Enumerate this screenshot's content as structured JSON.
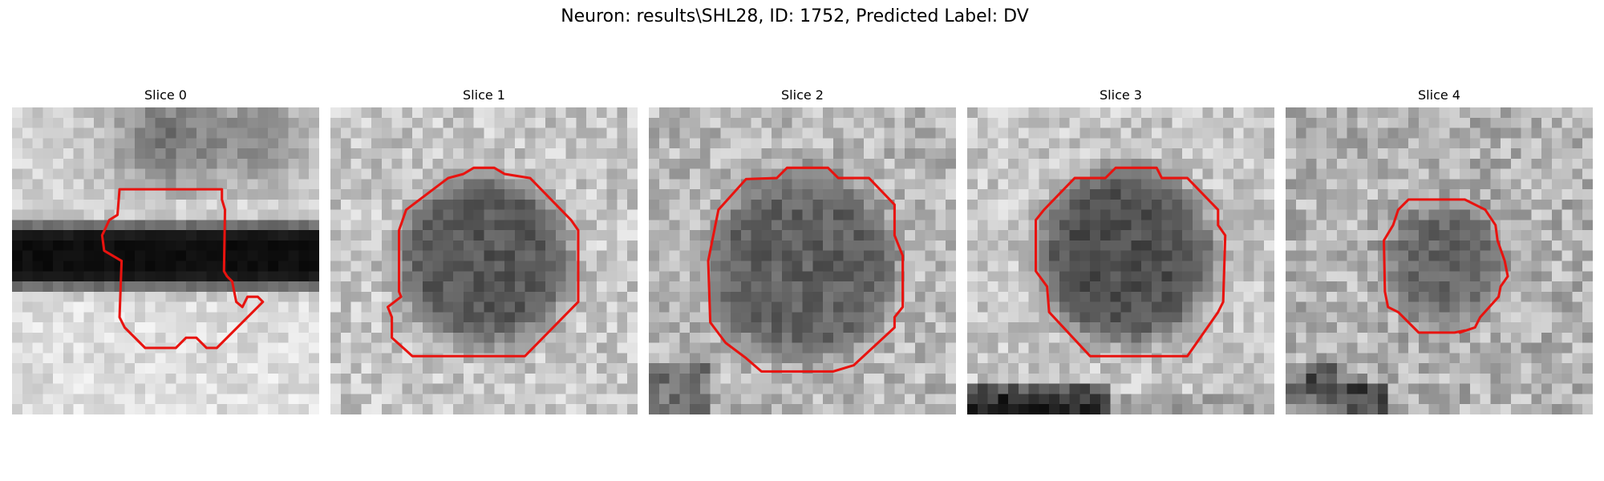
{
  "figure": {
    "title": "Neuron: results\\SHL28, ID: 1752, Predicted Label: DV",
    "contour_color": "#e8130f"
  },
  "slices": [
    {
      "title": "Slice 0",
      "contour": [
        [
          10.5,
          8
        ],
        [
          20.5,
          8
        ],
        [
          20.5,
          9
        ],
        [
          20.8,
          10
        ],
        [
          20.7,
          16
        ],
        [
          21,
          16.5
        ],
        [
          21.5,
          17
        ],
        [
          21.9,
          19
        ],
        [
          22.5,
          19.5
        ],
        [
          23,
          18.5
        ],
        [
          24,
          18.5
        ],
        [
          24.5,
          19
        ],
        [
          20,
          23.5
        ],
        [
          19,
          23.5
        ],
        [
          18,
          22.5
        ],
        [
          17,
          22.5
        ],
        [
          16,
          23.5
        ],
        [
          13,
          23.5
        ],
        [
          11,
          21.5
        ],
        [
          10.5,
          20.5
        ],
        [
          10.7,
          15
        ],
        [
          9,
          14
        ],
        [
          8.8,
          12.5
        ],
        [
          9.5,
          11
        ],
        [
          10.3,
          10.5
        ]
      ]
    },
    {
      "title": "Slice 1",
      "contour": [
        [
          14,
          5.9
        ],
        [
          16,
          5.9
        ],
        [
          17,
          6.5
        ],
        [
          19.5,
          6.9
        ],
        [
          23.5,
          11
        ],
        [
          24.2,
          12
        ],
        [
          24.2,
          19
        ],
        [
          19,
          24.3
        ],
        [
          8,
          24.3
        ],
        [
          6,
          22.5
        ],
        [
          6,
          20.5
        ],
        [
          5.6,
          19.5
        ],
        [
          6.9,
          18.5
        ],
        [
          6.7,
          18
        ],
        [
          6.7,
          12
        ],
        [
          7.4,
          10
        ],
        [
          11.5,
          6.9
        ],
        [
          13,
          6.5
        ]
      ]
    },
    {
      "title": "Slice 2",
      "contour": [
        [
          13.5,
          5.9
        ],
        [
          17.5,
          5.9
        ],
        [
          18.5,
          6.9
        ],
        [
          21.5,
          6.9
        ],
        [
          24,
          9.5
        ],
        [
          24,
          12.5
        ],
        [
          24.8,
          14.5
        ],
        [
          24.8,
          19.5
        ],
        [
          24,
          20.5
        ],
        [
          24,
          21.5
        ],
        [
          20,
          25.2
        ],
        [
          18,
          25.8
        ],
        [
          11,
          25.8
        ],
        [
          9.5,
          24.5
        ],
        [
          7.5,
          23
        ],
        [
          6,
          21
        ],
        [
          5.8,
          15
        ],
        [
          6.8,
          10
        ],
        [
          9.5,
          7
        ],
        [
          12.5,
          6.9
        ]
      ]
    },
    {
      "title": "Slice 3",
      "contour": [
        [
          14.5,
          5.9
        ],
        [
          18.5,
          5.9
        ],
        [
          19,
          6.9
        ],
        [
          21.5,
          6.9
        ],
        [
          24.5,
          10
        ],
        [
          24.5,
          11.5
        ],
        [
          25.2,
          12.5
        ],
        [
          25,
          19
        ],
        [
          24.5,
          20
        ],
        [
          21.5,
          24.3
        ],
        [
          12,
          24.3
        ],
        [
          8,
          20
        ],
        [
          7.8,
          17.5
        ],
        [
          6.7,
          16
        ],
        [
          6.7,
          11
        ],
        [
          7.5,
          10
        ],
        [
          10.5,
          6.9
        ],
        [
          13.5,
          6.9
        ]
      ]
    },
    {
      "title": "Slice 4",
      "contour": [
        [
          12,
          9
        ],
        [
          17.5,
          9
        ],
        [
          19.5,
          10
        ],
        [
          20.5,
          11.5
        ],
        [
          20.7,
          13
        ],
        [
          21.4,
          15
        ],
        [
          21.7,
          16.5
        ],
        [
          21,
          17.5
        ],
        [
          20.8,
          18.5
        ],
        [
          19,
          20.5
        ],
        [
          18.5,
          21.5
        ],
        [
          17,
          22
        ],
        [
          17.5,
          21.8
        ],
        [
          16.5,
          22
        ],
        [
          13,
          22
        ],
        [
          11,
          20
        ],
        [
          10,
          19.5
        ],
        [
          9.7,
          18
        ],
        [
          9.6,
          13
        ],
        [
          10.5,
          11.5
        ],
        [
          11,
          10
        ]
      ]
    }
  ]
}
